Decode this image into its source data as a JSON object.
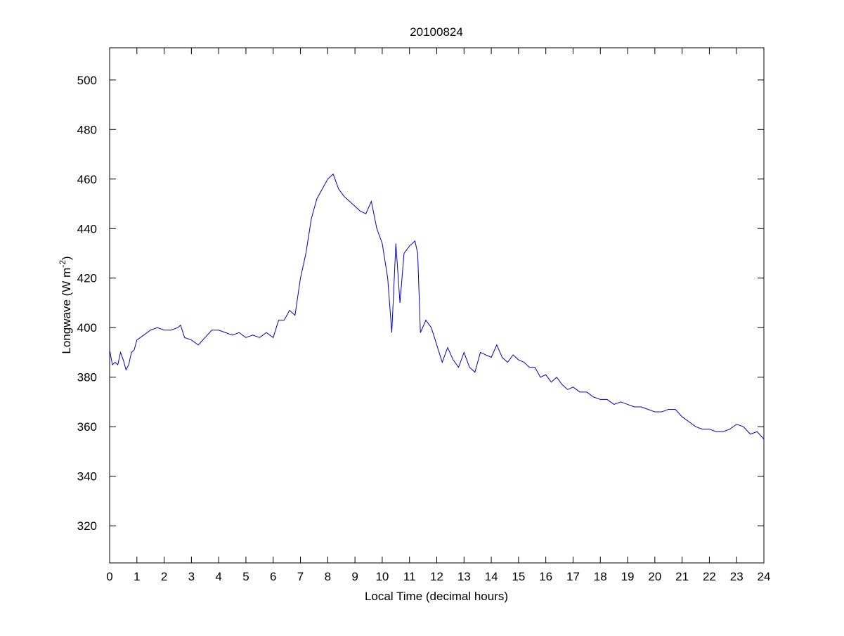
{
  "chart_data": {
    "type": "line",
    "title": "20100824",
    "xlabel": "Local Time (decimal hours)",
    "ylabel": {
      "main": "Longwave (W m",
      "sup": "-2",
      "end": ")"
    },
    "x": [
      0,
      0.1,
      0.2,
      0.3,
      0.4,
      0.5,
      0.6,
      0.7,
      0.8,
      0.9,
      1.0,
      1.25,
      1.5,
      1.75,
      2,
      2.25,
      2.5,
      2.6,
      2.75,
      3,
      3.25,
      3.5,
      3.75,
      4,
      4.25,
      4.5,
      4.75,
      5,
      5.25,
      5.5,
      5.75,
      6,
      6.2,
      6.4,
      6.6,
      6.8,
      7,
      7.2,
      7.4,
      7.6,
      7.8,
      8,
      8.2,
      8.4,
      8.6,
      8.8,
      9,
      9.2,
      9.4,
      9.6,
      9.8,
      10,
      10.2,
      10.35,
      10.5,
      10.65,
      10.8,
      11,
      11.2,
      11.3,
      11.4,
      11.6,
      11.8,
      12,
      12.2,
      12.4,
      12.6,
      12.8,
      13,
      13.2,
      13.4,
      13.6,
      13.8,
      14,
      14.2,
      14.4,
      14.6,
      14.8,
      15,
      15.2,
      15.4,
      15.6,
      15.8,
      16,
      16.2,
      16.4,
      16.6,
      16.8,
      17,
      17.25,
      17.5,
      17.75,
      18,
      18.25,
      18.5,
      18.75,
      19,
      19.25,
      19.5,
      19.75,
      20,
      20.25,
      20.5,
      20.75,
      21,
      21.25,
      21.5,
      21.75,
      22,
      22.25,
      22.5,
      22.75,
      23,
      23.25,
      23.5,
      23.75,
      24
    ],
    "series": [
      {
        "color": "#0000cc",
        "values": [
          391,
          385,
          386,
          385,
          390,
          387,
          383,
          385,
          390,
          391,
          395,
          397,
          399,
          400,
          399,
          399,
          400,
          401,
          396,
          395,
          393,
          396,
          399,
          399,
          398,
          397,
          398,
          396,
          397,
          396,
          398,
          396,
          403,
          403,
          407,
          405,
          420,
          430,
          444,
          452,
          456,
          460,
          462,
          456,
          453,
          451,
          449,
          447,
          446,
          451,
          440,
          434,
          420,
          398,
          434,
          410,
          430,
          433,
          435,
          430,
          398,
          403,
          400,
          393,
          386,
          392,
          387,
          384,
          390,
          384,
          382,
          390,
          389,
          388,
          393,
          388,
          386,
          389,
          387,
          386,
          384,
          384,
          380,
          381,
          378,
          380,
          377,
          375,
          376,
          374,
          374,
          372,
          371,
          371,
          369,
          370,
          369,
          368,
          368,
          367,
          366,
          366,
          367,
          367,
          364,
          362,
          360,
          359,
          359,
          358,
          358,
          359,
          361,
          360,
          357,
          358,
          355
        ]
      }
    ],
    "xlim": [
      0,
      24
    ],
    "xticks": [
      0,
      1,
      2,
      3,
      4,
      5,
      6,
      7,
      8,
      9,
      10,
      11,
      12,
      13,
      14,
      15,
      16,
      17,
      18,
      19,
      20,
      21,
      22,
      23,
      24
    ],
    "ylim": [
      305,
      513
    ],
    "yticks": [
      320,
      340,
      360,
      380,
      400,
      420,
      440,
      460,
      480,
      500
    ]
  }
}
